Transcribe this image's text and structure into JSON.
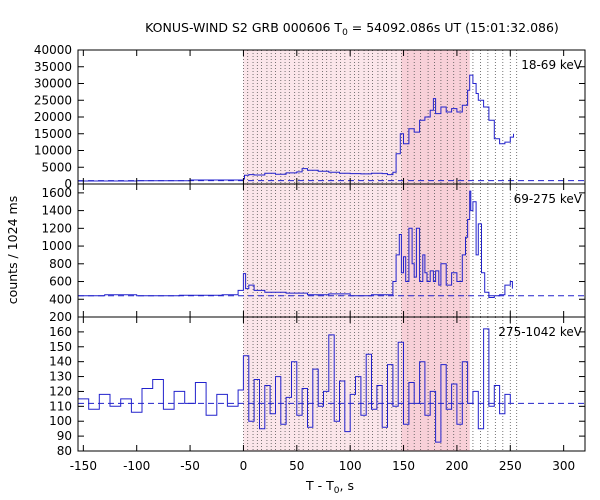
{
  "figure": {
    "title_main": "KONUS-WIND S2 GRB 000606 T",
    "title_sub": "0",
    "title_rest": " = 54092.086s UT (15:01:32.086)",
    "ylabel": "counts / 1024 ms",
    "xlabel_main": "T - T",
    "xlabel_sub": "0",
    "xlabel_rest": ", s",
    "colors": {
      "series": "#2222cc",
      "band_light": "#fbe6ea",
      "band_dark": "#f8d0d8",
      "vline": "#555555",
      "background_line": "#2222cc"
    }
  },
  "chart_data": {
    "type": "line",
    "x_axis": {
      "label": "T - T0, s",
      "range": [
        -155,
        320
      ],
      "ticks": [
        -150,
        -100,
        -50,
        0,
        50,
        100,
        150,
        200,
        250,
        300
      ],
      "tick_labels": [
        "-150",
        "-100",
        "-50",
        "0",
        "50",
        "100",
        "150",
        "200",
        "250",
        "300"
      ]
    },
    "shaded_intervals": [
      {
        "from": 0,
        "to": 212,
        "shade": "light"
      },
      {
        "from": 148,
        "to": 212,
        "shade": "dark"
      }
    ],
    "vertical_lines": [
      0,
      4,
      9,
      13,
      17,
      22,
      26,
      30,
      35,
      39,
      43,
      48,
      52,
      56,
      61,
      65,
      69,
      74,
      78,
      82,
      87,
      91,
      95,
      100,
      104,
      108,
      113,
      117,
      121,
      126,
      130,
      134,
      139,
      143,
      148,
      154,
      160,
      166,
      173,
      179,
      185,
      191,
      197,
      203,
      209,
      215,
      222,
      229,
      236,
      243,
      250,
      256
    ],
    "panels": [
      {
        "band_label": "18-69 keV",
        "ylim": [
          0,
          40000
        ],
        "yticks": [
          0,
          5000,
          10000,
          15000,
          20000,
          25000,
          30000,
          35000,
          40000
        ],
        "ytick_labels": [
          "0",
          "5000",
          "10000",
          "15000",
          "20000",
          "25000",
          "30000",
          "35000",
          "40000"
        ],
        "background_level": 1000,
        "x": [
          -155,
          -100,
          -50,
          0,
          1,
          5,
          10,
          20,
          30,
          40,
          50,
          55,
          60,
          70,
          80,
          90,
          100,
          110,
          120,
          130,
          135,
          140,
          143,
          147,
          150,
          155,
          160,
          165,
          170,
          175,
          178,
          180,
          185,
          190,
          195,
          200,
          205,
          210,
          212,
          215,
          218,
          220,
          225,
          230,
          235,
          240,
          245,
          250,
          253
        ],
        "values": [
          900,
          1000,
          1200,
          1500,
          2600,
          2800,
          2700,
          3200,
          2900,
          3300,
          3600,
          4600,
          4100,
          3800,
          3500,
          3200,
          3100,
          3000,
          3200,
          3100,
          2800,
          3500,
          9000,
          15000,
          12000,
          16500,
          15500,
          19000,
          20000,
          22000,
          25500,
          21000,
          23000,
          21500,
          22500,
          21500,
          23500,
          28000,
          32500,
          30000,
          27000,
          25000,
          23000,
          19000,
          13500,
          12000,
          12500,
          14000,
          15000
        ]
      },
      {
        "band_label": "69-275 keV",
        "ylim": [
          200,
          1700
        ],
        "yticks": [
          200,
          400,
          600,
          800,
          1000,
          1200,
          1400,
          1600
        ],
        "ytick_labels": [
          "200",
          "400",
          "600",
          "800",
          "1000",
          "1200",
          "1400",
          "1600"
        ],
        "background_level": 440,
        "x": [
          -155,
          -130,
          -100,
          -60,
          -20,
          -5,
          0,
          2,
          5,
          10,
          20,
          40,
          60,
          80,
          100,
          120,
          135,
          140,
          143,
          146,
          148,
          150,
          152,
          155,
          158,
          160,
          162,
          165,
          168,
          170,
          172,
          175,
          178,
          180,
          183,
          185,
          190,
          195,
          200,
          205,
          208,
          210,
          212,
          213,
          215,
          218,
          220,
          223,
          226,
          230,
          235,
          240,
          245,
          250,
          252
        ],
        "values": [
          440,
          450,
          440,
          445,
          450,
          500,
          690,
          520,
          560,
          500,
          480,
          470,
          450,
          460,
          440,
          450,
          450,
          600,
          900,
          1130,
          700,
          880,
          600,
          1200,
          800,
          650,
          1200,
          600,
          900,
          700,
          600,
          720,
          600,
          720,
          560,
          800,
          560,
          700,
          600,
          900,
          1100,
          1300,
          1620,
          1400,
          1500,
          900,
          1250,
          700,
          480,
          420,
          440,
          450,
          560,
          600,
          520
        ]
      },
      {
        "band_label": "275-1042 keV",
        "ylim": [
          80,
          170
        ],
        "yticks": [
          80,
          90,
          100,
          110,
          120,
          130,
          140,
          150,
          160
        ],
        "ytick_labels": [
          "80",
          "90",
          "100",
          "110",
          "120",
          "130",
          "140",
          "150",
          "160"
        ],
        "background_level": 112,
        "x": [
          -155,
          -145,
          -135,
          -125,
          -115,
          -105,
          -95,
          -85,
          -75,
          -65,
          -55,
          -45,
          -35,
          -25,
          -15,
          -5,
          0,
          5,
          10,
          15,
          20,
          25,
          30,
          35,
          40,
          45,
          50,
          55,
          60,
          65,
          70,
          75,
          80,
          85,
          90,
          95,
          100,
          105,
          110,
          115,
          120,
          125,
          130,
          135,
          140,
          145,
          150,
          155,
          160,
          165,
          170,
          175,
          180,
          185,
          190,
          195,
          200,
          205,
          210,
          215,
          220,
          225,
          230,
          235,
          240,
          245,
          250
        ],
        "values": [
          115,
          108,
          118,
          110,
          115,
          106,
          122,
          128,
          108,
          120,
          112,
          126,
          104,
          118,
          110,
          121,
          144,
          100,
          128,
          95,
          124,
          105,
          130,
          98,
          116,
          140,
          104,
          122,
          96,
          135,
          110,
          120,
          158,
          100,
          127,
          93,
          118,
          130,
          104,
          145,
          108,
          124,
          96,
          138,
          110,
          153,
          98,
          126,
          112,
          140,
          104,
          120,
          86,
          138,
          108,
          125,
          98,
          140,
          112,
          120,
          95,
          162,
          110,
          124,
          105,
          118,
          112
        ]
      }
    ]
  }
}
